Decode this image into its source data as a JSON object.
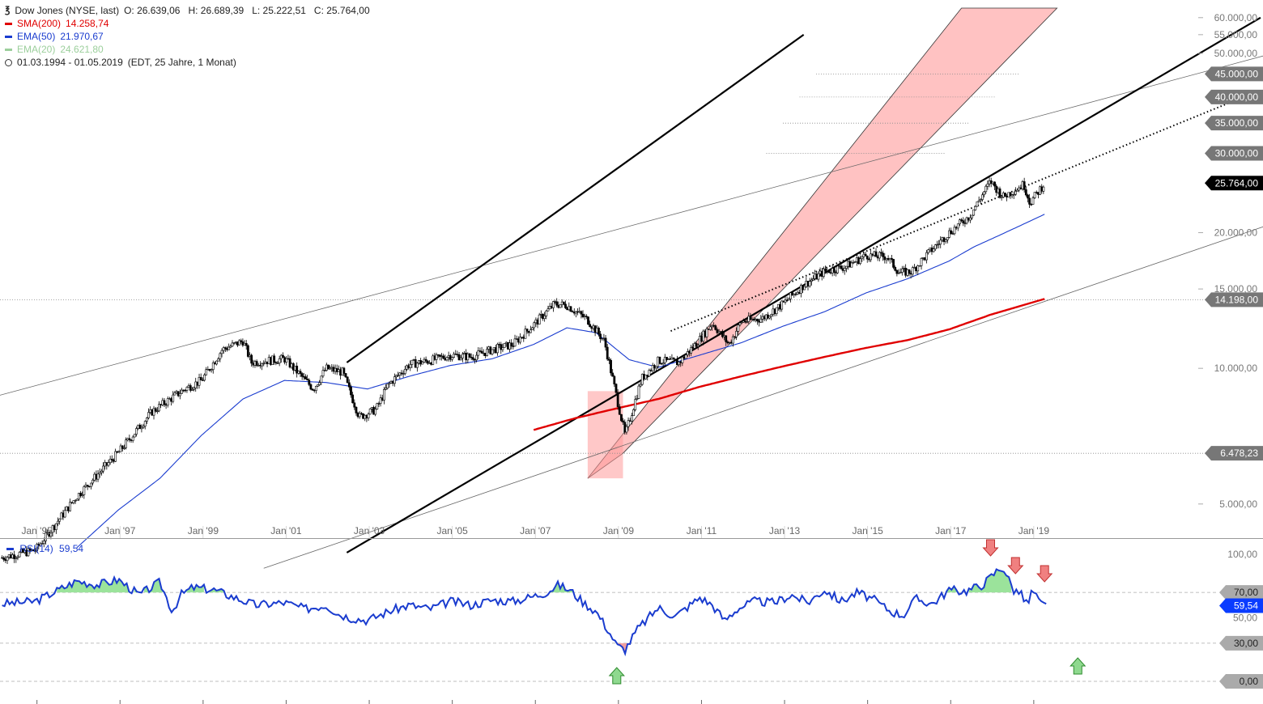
{
  "header": {
    "instrument": "Dow Jones (NYSE, last)",
    "ohlc": "O: 26.639,06   H: 26.689,39   L: 25.222,51   C: 25.764,00",
    "sma200_label": "SMA(200)",
    "sma200_value": "14.258,74",
    "ema50_label": "EMA(50)",
    "ema50_value": "21.970,67",
    "ema20_label": "EMA(20)",
    "ema20_value": "24.621,80",
    "range": "01.03.1994 - 01.05.2019",
    "range_info": "(EDT, 25 Jahre, 1 Monat)"
  },
  "colors": {
    "sma200": "#e00000",
    "ema50": "#1a3ccf",
    "ema20": "#9ccf9c",
    "channel": "#ff9a9a",
    "rsi": "#1a3ccf",
    "overbought_fill": "#9be39b",
    "oversold_fill": "#f2a0a0",
    "down_arrow": "#f08080",
    "up_arrow": "#8fd98f"
  },
  "price_axis": {
    "scale": "log",
    "ticks": [
      {
        "v": 60000,
        "label": "60.000,00"
      },
      {
        "v": 55000,
        "label": "55.000,00"
      },
      {
        "v": 50000,
        "label": "50.000,00"
      },
      {
        "v": 20000,
        "label": "20.000,00"
      },
      {
        "v": 15000,
        "label": "15.000,00"
      },
      {
        "v": 10000,
        "label": "10.000,00"
      },
      {
        "v": 5000,
        "label": "5.000,00"
      }
    ],
    "badges": [
      {
        "v": 45000,
        "label": "45.000,00",
        "style": "gray"
      },
      {
        "v": 40000,
        "label": "40.000,00",
        "style": "gray"
      },
      {
        "v": 35000,
        "label": "35.000,00",
        "style": "gray"
      },
      {
        "v": 30000,
        "label": "30.000,00",
        "style": "gray"
      },
      {
        "v": 25764,
        "label": "25.764,00",
        "style": "black"
      },
      {
        "v": 14198,
        "label": "14.198,00",
        "style": "gray"
      },
      {
        "v": 6478.23,
        "label": "6.478,23",
        "style": "gray"
      }
    ]
  },
  "time_axis": {
    "labels": [
      {
        "year": 1995,
        "label": "Jan '95"
      },
      {
        "year": 1997,
        "label": "Jan '97"
      },
      {
        "year": 1999,
        "label": "Jan '99"
      },
      {
        "year": 2001,
        "label": "Jan '01"
      },
      {
        "year": 2003,
        "label": "Jan '03"
      },
      {
        "year": 2005,
        "label": "Jan '05"
      },
      {
        "year": 2007,
        "label": "Jan '07"
      },
      {
        "year": 2009,
        "label": "Jan '09"
      },
      {
        "year": 2011,
        "label": "Jan '11"
      },
      {
        "year": 2013,
        "label": "Jan '13"
      },
      {
        "year": 2015,
        "label": "Jan '15"
      },
      {
        "year": 2017,
        "label": "Jan '17"
      },
      {
        "year": 2019,
        "label": "Jan '19"
      }
    ]
  },
  "rsi": {
    "label": "RSI(14)",
    "value_label": "59,54",
    "value": 59.54,
    "ticks": [
      {
        "v": 100,
        "label": "100,00",
        "style": "plain"
      },
      {
        "v": 70,
        "label": "70,00",
        "style": "gray"
      },
      {
        "v": 50,
        "label": "50,00",
        "style": "plain"
      },
      {
        "v": 30,
        "label": "30,00",
        "style": "gray"
      },
      {
        "v": 0,
        "label": "0,00",
        "style": "gray"
      }
    ],
    "down_arrows": [
      {
        "t": 2018.0
      },
      {
        "t": 2018.6
      },
      {
        "t": 2019.3
      }
    ],
    "up_arrows": [
      {
        "t": 2009.0
      },
      {
        "t": 2020.1
      }
    ]
  },
  "chart_data": {
    "type": "candlestick",
    "title": "Dow Jones (NYSE, last)",
    "scale": "log",
    "xlim": [
      1994.15,
      2023.0
    ],
    "ylim": [
      4200,
      63000
    ],
    "series": [
      {
        "name": "Dow Jones",
        "x": [
          1994.2,
          1995.0,
          1996.0,
          1997.0,
          1997.8,
          1998.6,
          1999.0,
          1999.5,
          2000.0,
          2000.2,
          2001.0,
          2001.7,
          2002.0,
          2002.4,
          2002.8,
          2003.2,
          2003.5,
          2004.0,
          2004.5,
          2005.0,
          2005.5,
          2006.0,
          2006.5,
          2007.0,
          2007.5,
          2007.8,
          2008.3,
          2008.7,
          2009.2,
          2009.6,
          2010.0,
          2010.5,
          2011.0,
          2011.3,
          2011.7,
          2012.0,
          2012.5,
          2013.0,
          2013.5,
          2014.0,
          2014.5,
          2015.0,
          2015.5,
          2015.8,
          2016.1,
          2016.5,
          2017.0,
          2017.5,
          2018.0,
          2018.3,
          2018.8,
          2018.95,
          2019.3
        ],
        "y": [
          3800,
          3950,
          5200,
          6500,
          8000,
          9000,
          9400,
          11000,
          11500,
          10300,
          10500,
          9000,
          10000,
          9800,
          7800,
          8100,
          9200,
          10200,
          10400,
          10700,
          10600,
          11000,
          11300,
          12500,
          13900,
          13800,
          12800,
          11500,
          7100,
          9500,
          10400,
          10300,
          11600,
          12600,
          11300,
          12700,
          12900,
          13900,
          15300,
          16400,
          16800,
          17800,
          17700,
          16300,
          16400,
          18000,
          20000,
          21800,
          26000,
          24000,
          25600,
          23300,
          25764
        ]
      },
      {
        "name": "SMA(200)",
        "x": [
          2007.0,
          2008.0,
          2009.0,
          2010.0,
          2011.0,
          2012.0,
          2013.0,
          2014.0,
          2015.0,
          2016.0,
          2017.0,
          2018.0,
          2019.3
        ],
        "y": [
          7300,
          7750,
          8150,
          8550,
          9100,
          9600,
          10100,
          10600,
          11100,
          11550,
          12200,
          13150,
          14258.74
        ]
      },
      {
        "name": "EMA(50)",
        "x": [
          1996.0,
          1997.0,
          1998.0,
          1999.0,
          2000.0,
          2001.0,
          2002.0,
          2003.0,
          2004.0,
          2005.0,
          2006.0,
          2007.0,
          2007.8,
          2008.5,
          2009.3,
          2010.0,
          2011.0,
          2012.0,
          2013.0,
          2014.0,
          2015.0,
          2016.0,
          2017.0,
          2017.6,
          2018.3,
          2019.3
        ],
        "y": [
          4000,
          4850,
          5700,
          7100,
          8550,
          9400,
          9300,
          9000,
          9600,
          10150,
          10500,
          11300,
          12300,
          12000,
          10450,
          10050,
          10700,
          11400,
          12400,
          13350,
          14700,
          15800,
          17300,
          18600,
          19900,
          21970.67
        ]
      },
      {
        "name": "RSI(14)",
        "x": [
          1994.2,
          1995.0,
          1995.5,
          1996.0,
          1996.5,
          1997.0,
          1997.5,
          1998.0,
          1998.3,
          1998.5,
          1998.8,
          1999.3,
          1999.8,
          2000.3,
          2001.0,
          2001.5,
          2002.0,
          2002.3,
          2002.6,
          2003.0,
          2003.5,
          2004.0,
          2004.5,
          2005.0,
          2005.5,
          2006.0,
          2006.5,
          2007.0,
          2007.3,
          2007.6,
          2007.9,
          2008.2,
          2008.5,
          2008.8,
          2009.0,
          2009.2,
          2009.5,
          2010.0,
          2010.4,
          2011.0,
          2011.3,
          2011.6,
          2011.9,
          2012.3,
          2012.8,
          2013.2,
          2013.6,
          2014.0,
          2014.4,
          2014.8,
          2015.2,
          2015.6,
          2015.9,
          2016.2,
          2016.6,
          2017.0,
          2017.4,
          2017.8,
          2018.0,
          2018.15,
          2018.3,
          2018.55,
          2018.7,
          2018.9,
          2019.0,
          2019.2,
          2019.35
        ],
        "y": [
          61,
          63,
          71,
          79,
          76,
          80,
          68,
          78,
          55,
          68,
          74,
          72,
          66,
          60,
          62,
          57,
          60,
          53,
          50,
          48,
          55,
          60,
          57,
          63,
          60,
          64,
          63,
          67,
          70,
          76,
          71,
          62,
          55,
          40,
          28,
          25,
          41,
          58,
          51,
          66,
          60,
          48,
          57,
          63,
          62,
          68,
          62,
          72,
          63,
          70,
          64,
          55,
          52,
          65,
          61,
          72,
          71,
          76,
          82,
          87,
          90,
          72,
          70,
          60,
          72,
          61,
          59.54
        ]
      }
    ],
    "reference_lines": [
      {
        "name": "horizontal",
        "value": 14198
      },
      {
        "name": "horizontal",
        "value": 6478.23
      },
      {
        "name": "dotted-target",
        "value": 45000
      },
      {
        "name": "dotted-target",
        "value": 40000
      },
      {
        "name": "dotted-target",
        "value": 35000
      },
      {
        "name": "dotted-target",
        "value": 30000
      }
    ],
    "trend_lines": [
      {
        "style": "thin",
        "x": [
          1993.5,
          2028.0
        ],
        "y": [
          8400,
          60000
        ]
      },
      {
        "style": "thin",
        "x": [
          2000.5,
          2033.0
        ],
        "y": [
          3600,
          38000
        ]
      },
      {
        "style": "thick",
        "x": [
          2002.5,
          2013.5
        ],
        "y": [
          10300,
          55000
        ]
      },
      {
        "style": "thick",
        "x": [
          2002.5,
          2024.5
        ],
        "y": [
          3900,
          60000
        ]
      },
      {
        "style": "dotted",
        "x": [
          2010.3,
          2023.8
        ],
        "y": [
          12100,
          39000
        ]
      }
    ],
    "channel": {
      "x": [
        2008.3,
        2009.15,
        2019.6,
        2017.3
      ],
      "y": [
        5700,
        6478.23,
        63000,
        63000
      ],
      "lower": {
        "x": [
          2008.3,
          2020.5
        ],
        "y": [
          5700,
          52000
        ]
      },
      "box_left": {
        "x": 2008.3,
        "y": [
          5700,
          8900
        ]
      }
    }
  }
}
